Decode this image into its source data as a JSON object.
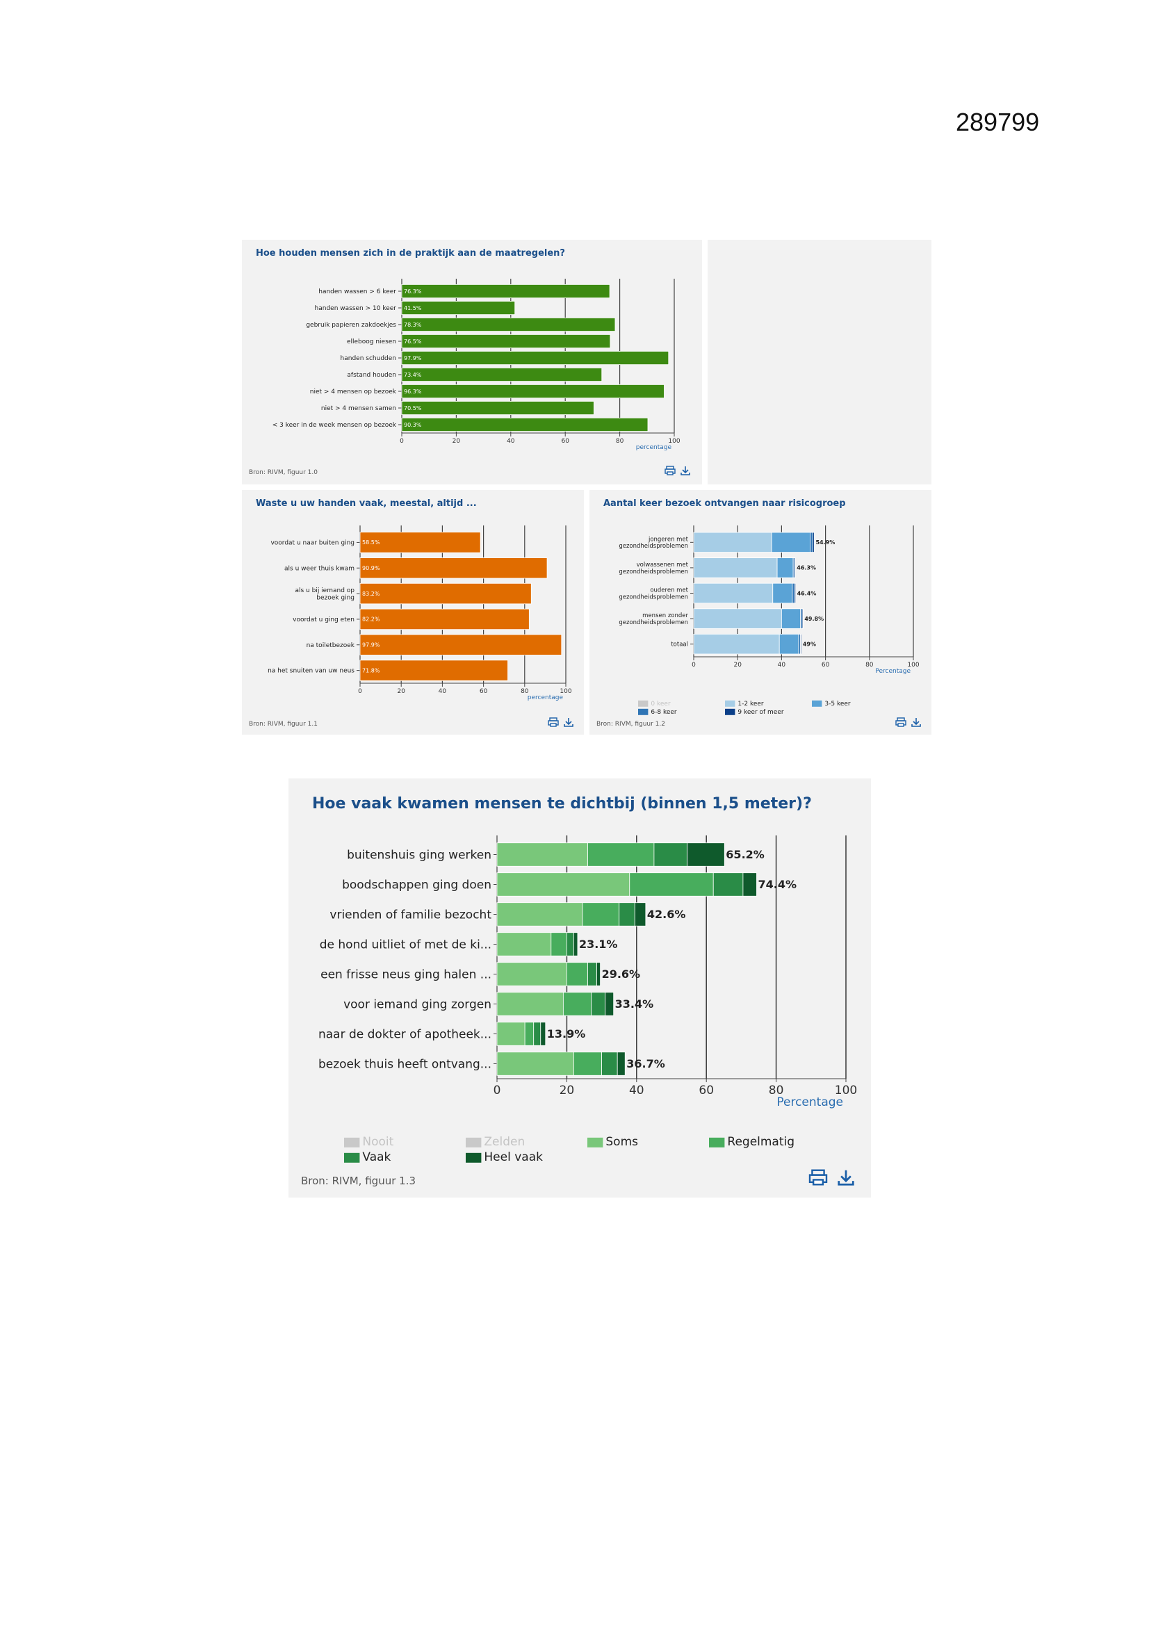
{
  "document_number": "289799",
  "chart_data": [
    {
      "id": "c1",
      "type": "bar",
      "title": "Hoe houden mensen zich in de praktijk aan de maatregelen?",
      "categories": [
        "handen wassen > 6 keer",
        "handen wassen > 10 keer",
        "gebruik papieren zakdoekjes",
        "elleboog niesen",
        "handen schudden",
        "afstand houden",
        "niet > 4 mensen op bezoek",
        "niet > 4 mensen samen",
        "< 3 keer in de week mensen op bezoek"
      ],
      "values": [
        76.3,
        41.5,
        78.3,
        76.5,
        97.9,
        73.4,
        96.3,
        70.5,
        90.3
      ],
      "data_labels": [
        "76.3%",
        "41.5%",
        "78.3%",
        "76.5%",
        "97.9%",
        "73.4%",
        "96.3%",
        "70.5%",
        "90.3%"
      ],
      "xlabel": "percentage",
      "xlim": [
        0,
        100
      ],
      "xticks": [
        "0",
        "20",
        "40",
        "60",
        "80",
        "100"
      ],
      "grid": true,
      "colors": {
        "bar": "#3d8a12"
      },
      "source": "Bron: RIVM, figuur 1.0"
    },
    {
      "id": "c2",
      "type": "bar",
      "title": "Waste u uw handen vaak, meestal, altijd ...",
      "categories": [
        "voordat u naar buiten ging",
        "als u weer thuis kwam",
        "als u bij iemand op bezoek ging",
        "voordat u ging eten",
        "na toiletbezoek",
        "na het snuiten van uw neus"
      ],
      "values": [
        58.5,
        90.9,
        83.2,
        82.2,
        97.9,
        71.8
      ],
      "data_labels": [
        "58.5%",
        "90.9%",
        "83.2%",
        "82.2%",
        "97.9%",
        "71.8%"
      ],
      "xlabel": "percentage",
      "xlim": [
        0,
        100
      ],
      "xticks": [
        "0",
        "20",
        "40",
        "60",
        "80",
        "100"
      ],
      "grid": true,
      "colors": {
        "bar": "#e06c00"
      },
      "source": "Bron: RIVM, figuur 1.1"
    },
    {
      "id": "c3",
      "type": "bar",
      "stacked": true,
      "title": "Aantal keer bezoek ontvangen naar risicogroep",
      "categories": [
        "jongeren met gezondheidsproblemen",
        "volwassenen met gezondheidsproblemen",
        "ouderen met gezondheidsproblemen",
        "mensen zonder gezondheidsproblemen",
        "totaal"
      ],
      "series": [
        {
          "name": "1-2 keer",
          "values": [
            35.5,
            38,
            36,
            40,
            39
          ]
        },
        {
          "name": "3-5 keer",
          "values": [
            17.5,
            7.3,
            8.9,
            8.6,
            8.8
          ]
        },
        {
          "name": "6-8 keer",
          "values": [
            1.3,
            0.6,
            1.0,
            0.8,
            0.8
          ]
        },
        {
          "name": "9 keer of meer",
          "values": [
            0.6,
            0.4,
            0.5,
            0.4,
            0.4
          ]
        }
      ],
      "data_labels": [
        "54.9%",
        "46.3%",
        "46.4%",
        "49.8%",
        "49%"
      ],
      "legend": [
        "0 keer",
        "1-2 keer",
        "3-5 keer",
        "6-8 keer",
        "9 keer of meer"
      ],
      "legend_colors": [
        "#c9c9c9",
        "#a6cde6",
        "#5aa3d6",
        "#2f75b5",
        "#0b3f88"
      ],
      "legend_placement": "bottom",
      "xlabel": "Percentage",
      "xlim": [
        0,
        100
      ],
      "xticks": [
        "0",
        "20",
        "40",
        "60",
        "80",
        "100"
      ],
      "grid": true,
      "source": "Bron: RIVM, figuur 1.2"
    },
    {
      "id": "c4",
      "type": "bar",
      "stacked": true,
      "title": "Hoe vaak kwamen mensen te dichtbij (binnen 1,5 meter)?",
      "categories": [
        "buitenshuis ging werken",
        "boodschappen ging doen",
        "vrienden of familie bezocht",
        "de hond uitliet of met de ki...",
        "een frisse neus ging halen ...",
        "voor iemand ging zorgen",
        "naar de dokter of apotheek...",
        "bezoek thuis heeft ontvang..."
      ],
      "series": [
        {
          "name": "Soms",
          "values": [
            26,
            38,
            24.5,
            15.5,
            20,
            19,
            8,
            22
          ]
        },
        {
          "name": "Regelmatig",
          "values": [
            19,
            24,
            10.5,
            4.5,
            6,
            8,
            2.5,
            8
          ]
        },
        {
          "name": "Vaak",
          "values": [
            9.5,
            8.5,
            4.5,
            2,
            2.6,
            4,
            2,
            4.5
          ]
        },
        {
          "name": "Heel vaak",
          "values": [
            10.7,
            3.9,
            3.1,
            1.1,
            1.0,
            2.4,
            1.4,
            2.2
          ]
        }
      ],
      "data_labels": [
        "65.2%",
        "74.4%",
        "42.6%",
        "23.1%",
        "29.6%",
        "33.4%",
        "13.9%",
        "36.7%"
      ],
      "legend": [
        "Nooit",
        "Zelden",
        "Soms",
        "Regelmatig",
        "Vaak",
        "Heel vaak"
      ],
      "legend_colors": [
        "#c9c9c9",
        "#c9c9c9",
        "#79c77a",
        "#48ad5d",
        "#2a8c47",
        "#0f5a2c"
      ],
      "legend_placement": "bottom",
      "xlabel": "Percentage",
      "xlim": [
        0,
        100
      ],
      "xticks": [
        "0",
        "20",
        "40",
        "60",
        "80",
        "100"
      ],
      "grid": true,
      "source": "Bron: RIVM, figuur 1.3"
    }
  ],
  "colors": {
    "series_c3": [
      "#a6cde6",
      "#5aa3d6",
      "#2f75b5",
      "#0b3f88"
    ],
    "series_c4": [
      "#79c77a",
      "#48ad5d",
      "#2a8c47",
      "#0f5a2c"
    ],
    "title": "#1b4f8a",
    "axis_label": "#2a6db0"
  },
  "icons": [
    "print-icon",
    "download-icon"
  ]
}
